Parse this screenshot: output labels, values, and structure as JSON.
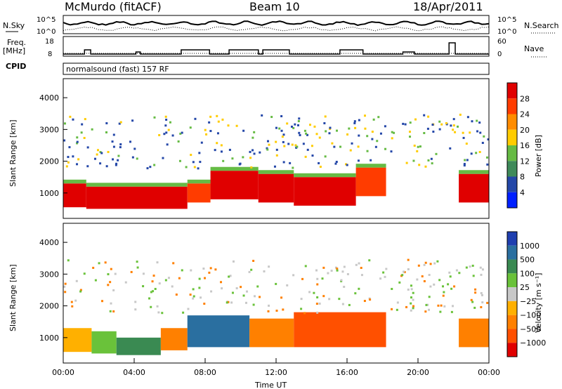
{
  "header": {
    "station": "McMurdo (fitACF)",
    "beam": "Beam 10",
    "date": "18/Apr/2011"
  },
  "noise_panel": {
    "left_label": "N.Sky",
    "right_label": "N.Search",
    "left_ticks": [
      "10^5",
      "10^0"
    ],
    "right_ticks": [
      "10^5",
      "10^0"
    ]
  },
  "freq_panel": {
    "left_label_1": "Freq.",
    "left_label_2": "[MHz]",
    "right_label": "Nave",
    "left_ticks": [
      "18",
      "8"
    ],
    "right_ticks": [
      "60",
      "0"
    ],
    "freq_steps": [
      {
        "t0": 0.0,
        "t1": 1.2,
        "f": 9.5
      },
      {
        "t0": 1.2,
        "t1": 1.55,
        "f": 12.5
      },
      {
        "t0": 1.55,
        "t1": 4.1,
        "f": 9.5
      },
      {
        "t0": 4.1,
        "t1": 4.35,
        "f": 11
      },
      {
        "t0": 4.35,
        "t1": 6.65,
        "f": 9.5
      },
      {
        "t0": 6.65,
        "t1": 8.25,
        "f": 12.5
      },
      {
        "t0": 8.25,
        "t1": 9.35,
        "f": 9.5
      },
      {
        "t0": 9.35,
        "t1": 11.0,
        "f": 12.5
      },
      {
        "t0": 11.0,
        "t1": 11.25,
        "f": 9.5
      },
      {
        "t0": 11.25,
        "t1": 12.75,
        "f": 12.5
      },
      {
        "t0": 12.75,
        "t1": 15.6,
        "f": 9.5
      },
      {
        "t0": 15.6,
        "t1": 16.9,
        "f": 12.5
      },
      {
        "t0": 16.9,
        "t1": 19.15,
        "f": 9.5
      },
      {
        "t0": 19.15,
        "t1": 19.8,
        "f": 11
      },
      {
        "t0": 19.8,
        "t1": 21.75,
        "f": 9.5
      },
      {
        "t0": 21.75,
        "t1": 22.1,
        "f": 17.5
      },
      {
        "t0": 22.1,
        "t1": 24.0,
        "f": 9.5
      }
    ],
    "nave_level": 12
  },
  "cpid": {
    "label": "CPID",
    "text": "normalsound (fast) 157 RF"
  },
  "power_panel": {
    "ylabel": "Slant Range [km]",
    "yticks": [
      "4000",
      "3000",
      "2000",
      "1000"
    ],
    "colorbar_label": "Power [dB]",
    "colorbar_ticks": [
      "28",
      "24",
      "20",
      "16",
      "12",
      "8",
      "4"
    ],
    "colors": {
      "p28": "#e00000",
      "p24": "#ff3c00",
      "p20": "#ff8c00",
      "p16": "#ffcc00",
      "p12": "#66bb44",
      "p8": "#3f8a5a",
      "p4": "#2447a8",
      "p0": "#0020ff"
    }
  },
  "velocity_panel": {
    "ylabel": "Slant Range [km]",
    "yticks": [
      "4000",
      "3000",
      "2000",
      "1000"
    ],
    "colorbar_label": "Velocity [m s⁻¹]",
    "colorbar_ticks": [
      "1000",
      "500",
      "100",
      "25",
      "−25",
      "−100",
      "−500",
      "−1000"
    ],
    "colors": {
      "v1000": "#1f3fb0",
      "v500": "#2a6fa0",
      "v100": "#3a8a52",
      "v25": "#6ac23a",
      "vzero": "#c8c8c8",
      "vm25": "#ffb000",
      "vm100": "#ff8000",
      "vm500": "#ff5000",
      "vm1000": "#e00000"
    }
  },
  "x_axis": {
    "label": "Time UT",
    "ticks": [
      "00:00",
      "04:00",
      "08:00",
      "12:00",
      "16:00",
      "20:00",
      "00:00"
    ]
  },
  "chart_data": {
    "type": "heatmap",
    "title": "McMurdo (fitACF)",
    "xlabel": "Time UT",
    "ylabel": "Slant Range [km]",
    "xlim_hours": [
      0,
      24
    ],
    "ylim_km": [
      200,
      4600
    ],
    "grid": false,
    "power_bands": [
      {
        "t0": 0,
        "t1": 1.3,
        "r0": 550,
        "r1": 1300,
        "level": 28
      },
      {
        "t0": 1.3,
        "t1": 7.0,
        "r0": 500,
        "r1": 1200,
        "level": 28
      },
      {
        "t0": 7.0,
        "t1": 8.3,
        "r0": 700,
        "r1": 1300,
        "level": 24
      },
      {
        "t0": 8.3,
        "t1": 11.0,
        "r0": 800,
        "r1": 1700,
        "level": 28
      },
      {
        "t0": 11.0,
        "t1": 13.0,
        "r0": 700,
        "r1": 1600,
        "level": 28
      },
      {
        "t0": 13.0,
        "t1": 16.5,
        "r0": 600,
        "r1": 1500,
        "level": 28
      },
      {
        "t0": 16.5,
        "t1": 18.2,
        "r0": 900,
        "r1": 1800,
        "level": 24
      },
      {
        "t0": 22.3,
        "t1": 24.0,
        "r0": 700,
        "r1": 1600,
        "level": 28
      }
    ],
    "velocity_bands": [
      {
        "t0": 0,
        "t1": 1.6,
        "r0": 550,
        "r1": 1300,
        "level": -25
      },
      {
        "t0": 1.6,
        "t1": 3.0,
        "r0": 500,
        "r1": 1200,
        "level": 25
      },
      {
        "t0": 3.0,
        "t1": 5.5,
        "r0": 450,
        "r1": 1000,
        "level": 100
      },
      {
        "t0": 5.5,
        "t1": 7.0,
        "r0": 600,
        "r1": 1300,
        "level": -100
      },
      {
        "t0": 7.0,
        "t1": 10.5,
        "r0": 700,
        "r1": 1700,
        "level": 500
      },
      {
        "t0": 10.5,
        "t1": 13.0,
        "r0": 700,
        "r1": 1600,
        "level": -100
      },
      {
        "t0": 13.0,
        "t1": 18.2,
        "r0": 700,
        "r1": 1800,
        "level": -500
      },
      {
        "t0": 22.3,
        "t1": 24.0,
        "r0": 700,
        "r1": 1600,
        "level": -100
      }
    ]
  }
}
